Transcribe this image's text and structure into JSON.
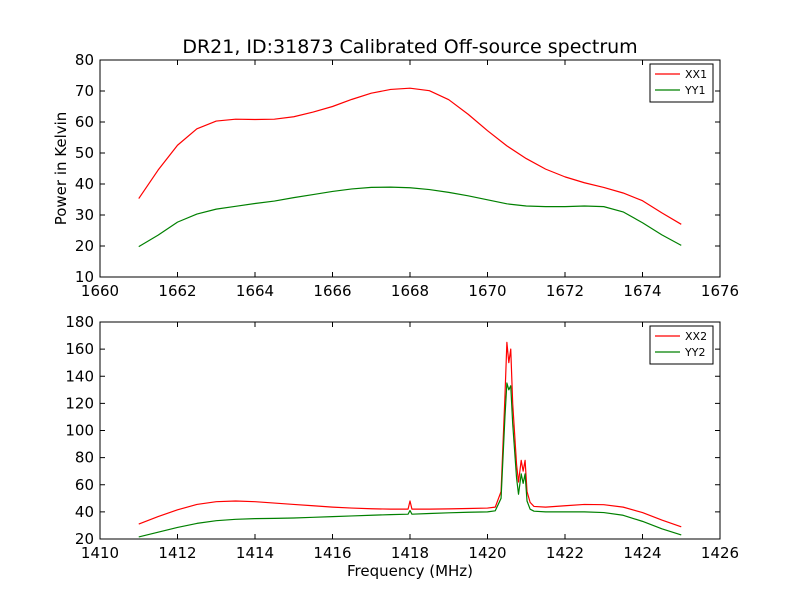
{
  "title": "DR21, ID:31873 Calibrated Off-source spectrum",
  "colors": {
    "XX": "#ff0000",
    "YY": "#008000"
  },
  "chart_data": [
    {
      "type": "line",
      "title": "DR21, ID:31873 Calibrated Off-source spectrum",
      "xlabel": "",
      "ylabel": "Power in Kelvin",
      "xlim": [
        1660,
        1676
      ],
      "ylim": [
        10,
        80
      ],
      "xticks": [
        1660,
        1662,
        1664,
        1666,
        1668,
        1670,
        1672,
        1674,
        1676
      ],
      "yticks": [
        10,
        20,
        30,
        40,
        50,
        60,
        70,
        80
      ],
      "legend": "top-right",
      "grid": false,
      "series": [
        {
          "name": "XX1",
          "color": "#ff0000",
          "x": [
            1661,
            1661.5,
            1662,
            1662.5,
            1663,
            1663.5,
            1664,
            1664.5,
            1665,
            1665.5,
            1666,
            1666.5,
            1667,
            1667.5,
            1668,
            1668.5,
            1669,
            1669.5,
            1670,
            1670.5,
            1671,
            1671.5,
            1672,
            1672.5,
            1673,
            1673.5,
            1674,
            1674.5,
            1675
          ],
          "y": [
            35.3,
            44.5,
            52.5,
            57.8,
            60.3,
            60.9,
            60.8,
            60.9,
            61.7,
            63.2,
            65.0,
            67.3,
            69.3,
            70.5,
            70.9,
            70.1,
            67.2,
            62.5,
            57.2,
            52.3,
            48.2,
            44.8,
            42.3,
            40.4,
            38.9,
            37.1,
            34.6,
            30.7,
            27.0
          ]
        },
        {
          "name": "YY1",
          "color": "#008000",
          "x": [
            1661,
            1661.5,
            1662,
            1662.5,
            1663,
            1663.5,
            1664,
            1664.5,
            1665,
            1665.5,
            1666,
            1666.5,
            1667,
            1667.5,
            1668,
            1668.5,
            1669,
            1669.5,
            1670,
            1670.5,
            1671,
            1671.5,
            1672,
            1672.5,
            1673,
            1673.5,
            1674,
            1674.5,
            1675
          ],
          "y": [
            19.8,
            23.5,
            27.7,
            30.3,
            31.9,
            32.8,
            33.7,
            34.5,
            35.6,
            36.6,
            37.6,
            38.4,
            38.9,
            39.0,
            38.8,
            38.2,
            37.3,
            36.2,
            34.9,
            33.6,
            32.9,
            32.7,
            32.7,
            32.9,
            32.7,
            31.0,
            27.5,
            23.6,
            20.2
          ]
        }
      ]
    },
    {
      "type": "line",
      "title": "",
      "xlabel": "Frequency (MHz)",
      "ylabel": "",
      "xlim": [
        1410,
        1426
      ],
      "ylim": [
        20,
        180
      ],
      "xticks": [
        1410,
        1412,
        1414,
        1416,
        1418,
        1420,
        1422,
        1424,
        1426
      ],
      "yticks": [
        20,
        40,
        60,
        80,
        100,
        120,
        140,
        160,
        180
      ],
      "legend": "top-right",
      "grid": false,
      "series": [
        {
          "name": "XX2",
          "color": "#ff0000",
          "x": [
            1411,
            1411.5,
            1412,
            1412.5,
            1413,
            1413.5,
            1414,
            1414.5,
            1415,
            1415.5,
            1416,
            1416.5,
            1417,
            1417.5,
            1417.95,
            1418.0,
            1418.05,
            1418.5,
            1419,
            1419.5,
            1420,
            1420.2,
            1420.35,
            1420.45,
            1420.5,
            1420.55,
            1420.6,
            1420.65,
            1420.75,
            1420.8,
            1420.87,
            1420.92,
            1420.97,
            1421.02,
            1421.1,
            1421.2,
            1421.5,
            1422,
            1422.5,
            1423,
            1423.5,
            1424,
            1424.5,
            1425
          ],
          "y": [
            31,
            36.5,
            41.5,
            45.5,
            47.5,
            48,
            47.5,
            46.5,
            45.5,
            44.5,
            43.5,
            42.8,
            42.3,
            42.0,
            42.0,
            48,
            42.0,
            42.0,
            42.2,
            42.5,
            42.8,
            43.5,
            55,
            125,
            165,
            150,
            160,
            120,
            75,
            62,
            78,
            70,
            78,
            55,
            47,
            44,
            43.5,
            44.5,
            45.5,
            45.3,
            43.5,
            39.5,
            34,
            29
          ]
        },
        {
          "name": "YY2",
          "color": "#008000",
          "x": [
            1411,
            1411.5,
            1412,
            1412.5,
            1413,
            1413.5,
            1414,
            1414.5,
            1415,
            1415.5,
            1416,
            1416.5,
            1417,
            1417.5,
            1417.95,
            1418.0,
            1418.05,
            1418.5,
            1419,
            1419.5,
            1420,
            1420.2,
            1420.35,
            1420.45,
            1420.5,
            1420.55,
            1420.6,
            1420.65,
            1420.75,
            1420.8,
            1420.87,
            1420.92,
            1420.97,
            1421.02,
            1421.1,
            1421.2,
            1421.5,
            1422,
            1422.5,
            1423,
            1423.5,
            1424,
            1424.5,
            1425
          ],
          "y": [
            21.5,
            25,
            28.5,
            31.5,
            33.5,
            34.5,
            35.0,
            35.2,
            35.5,
            36.0,
            36.5,
            37.0,
            37.5,
            38.0,
            38.3,
            41,
            38.3,
            38.8,
            39.3,
            39.7,
            40.0,
            40.8,
            50,
            110,
            135,
            130,
            133,
            105,
            65,
            53,
            68,
            61,
            68,
            48,
            42,
            40.5,
            40.0,
            40.0,
            40.0,
            39.5,
            37.5,
            33,
            27.5,
            23
          ]
        }
      ]
    }
  ]
}
